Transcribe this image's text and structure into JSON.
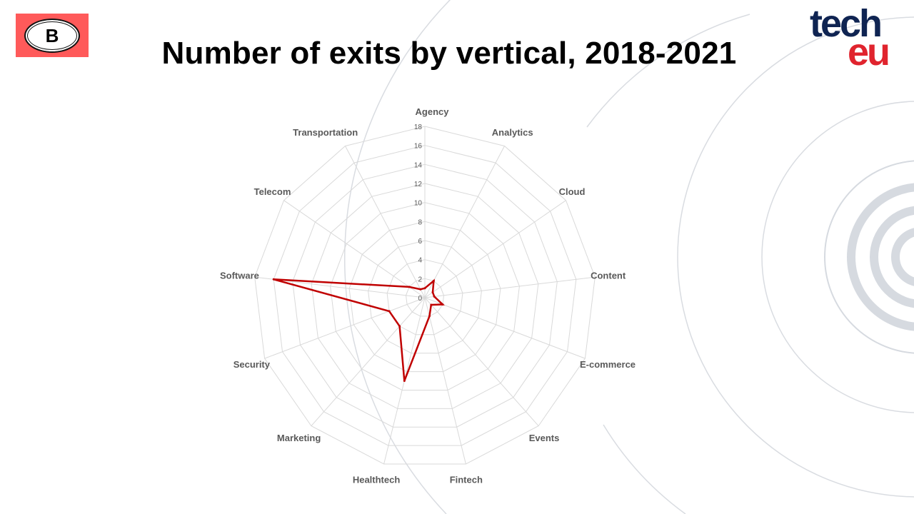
{
  "badge": {
    "letter": "B"
  },
  "logo": {
    "line1": "tech",
    "line2": "eu"
  },
  "chart_data": {
    "type": "radar",
    "title": "Number of exits by vertical, 2018-2021",
    "categories": [
      "Agency",
      "Analytics",
      "Cloud",
      "Content",
      "E-commerce",
      "Events",
      "Fintech",
      "Healthtech",
      "Marketing",
      "Security",
      "Software",
      "Telecom",
      "Transportation"
    ],
    "series": [
      {
        "values": [
          1,
          2,
          1,
          1,
          2,
          1,
          2,
          9,
          4,
          4,
          16,
          2,
          1
        ],
        "color": "#c00000"
      }
    ],
    "ticks": [
      0,
      2,
      4,
      6,
      8,
      10,
      12,
      14,
      16,
      18
    ],
    "rmax": 18,
    "grid": true,
    "legend": "none"
  },
  "colors": {
    "background": "#ffffff",
    "grid": "#d9d9d9",
    "deco": "#d6dae0"
  }
}
